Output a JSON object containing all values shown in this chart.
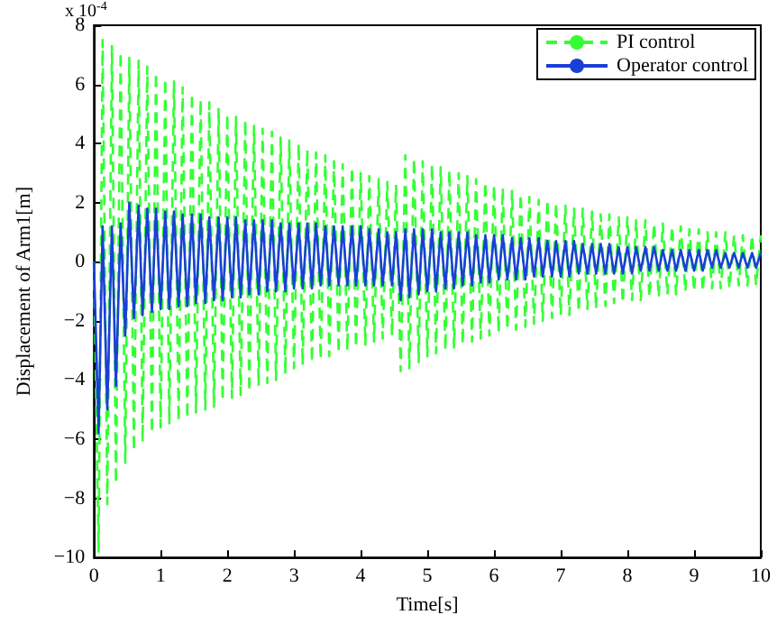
{
  "chart_data": {
    "type": "line",
    "xlabel": "Time[s]",
    "ylabel": "Displacement of Arm1[m]",
    "annotations": [
      "x 10$^{-4}$"
    ],
    "xlim": [
      0,
      10
    ],
    "xticks": [
      0,
      1,
      2,
      3,
      4,
      5,
      6,
      7,
      8,
      9,
      10
    ],
    "ylim": [
      -10,
      8
    ],
    "yticks": [
      -10,
      -8,
      -6,
      -4,
      -2,
      0,
      2,
      4,
      6,
      8
    ],
    "grid": false,
    "legend": "top right",
    "marker": "none",
    "x": [
      0,
      0.07,
      0.13,
      0.2,
      0.27,
      0.33,
      0.4,
      0.47,
      0.53,
      0.6,
      0.67,
      0.73,
      0.8,
      0.87,
      0.93,
      1,
      1.07,
      1.13,
      1.2,
      1.27,
      1.33,
      1.4,
      1.47,
      1.53,
      1.6,
      1.67,
      1.73,
      1.8,
      1.87,
      1.93,
      2,
      2.07,
      2.13,
      2.2,
      2.27,
      2.33,
      2.4,
      2.47,
      2.53,
      2.6,
      2.67,
      2.73,
      2.8,
      2.87,
      2.93,
      3,
      3.07,
      3.13,
      3.2,
      3.27,
      3.33,
      3.4,
      3.47,
      3.53,
      3.6,
      3.67,
      3.73,
      3.8,
      3.87,
      3.93,
      4,
      4.07,
      4.13,
      4.2,
      4.27,
      4.33,
      4.4,
      4.47,
      4.53,
      4.6,
      4.67,
      4.73,
      4.8,
      4.87,
      4.93,
      5,
      5.07,
      5.13,
      5.2,
      5.27,
      5.33,
      5.4,
      5.47,
      5.53,
      5.6,
      5.67,
      5.73,
      5.8,
      5.87,
      5.93,
      6,
      6.07,
      6.13,
      6.2,
      6.27,
      6.33,
      6.4,
      6.47,
      6.53,
      6.6,
      6.67,
      6.73,
      6.8,
      6.87,
      6.93,
      7,
      7.07,
      7.13,
      7.2,
      7.27,
      7.33,
      7.4,
      7.47,
      7.53,
      7.6,
      7.67,
      7.73,
      7.8,
      7.87,
      7.93,
      8,
      8.07,
      8.13,
      8.2,
      8.27,
      8.33,
      8.4,
      8.47,
      8.53,
      8.6,
      8.67,
      8.73,
      8.8,
      8.87,
      8.93,
      9,
      9.07,
      9.13,
      9.2,
      9.27,
      9.33,
      9.4,
      9.47,
      9.53,
      9.6,
      9.67,
      9.73,
      9.8,
      9.87,
      9.93,
      10
    ],
    "series": [
      {
        "name": "PI control",
        "color": "#33ff33",
        "line_style": "dashed",
        "values": [
          0,
          -9.8,
          7.5,
          -8.2,
          7.3,
          -7.5,
          7.1,
          -6.8,
          6.9,
          -6.4,
          6.8,
          -6.1,
          6.6,
          -5.8,
          6.4,
          -5.6,
          6.2,
          -5.5,
          6.1,
          -5.4,
          5.9,
          -5.3,
          5.7,
          -5.1,
          5.5,
          -5.0,
          5.4,
          -4.9,
          5.2,
          -4.7,
          5.0,
          -4.6,
          4.9,
          -4.5,
          4.8,
          -4.4,
          4.6,
          -4.2,
          4.5,
          -4.1,
          4.4,
          -4.0,
          4.2,
          -3.8,
          4.1,
          -3.6,
          4.0,
          -3.5,
          3.8,
          -3.4,
          3.7,
          -3.3,
          3.6,
          -3.2,
          3.4,
          -3.1,
          3.3,
          -3.0,
          3.2,
          -2.9,
          3.0,
          -2.8,
          2.9,
          -2.7,
          2.8,
          -2.6,
          2.7,
          -2.5,
          2.6,
          -3.7,
          3.6,
          -3.6,
          3.5,
          -3.4,
          3.4,
          -3.2,
          3.3,
          -3.1,
          3.2,
          -3.0,
          3.1,
          -2.9,
          3.0,
          -2.8,
          2.9,
          -2.7,
          2.8,
          -2.6,
          2.7,
          -2.5,
          2.6,
          -2.4,
          2.5,
          -2.3,
          2.4,
          -2.3,
          2.3,
          -2.2,
          2.2,
          -2.1,
          2.1,
          -2.0,
          2.1,
          -1.9,
          2.0,
          -1.8,
          1.9,
          -1.8,
          1.8,
          -1.7,
          1.8,
          -1.6,
          1.7,
          -1.6,
          1.6,
          -1.5,
          1.6,
          -1.4,
          1.5,
          -1.4,
          1.5,
          -1.3,
          1.4,
          -1.3,
          1.4,
          -1.2,
          1.3,
          -1.2,
          1.3,
          -1.1,
          1.2,
          -1.1,
          1.2,
          -1.0,
          1.1,
          -1.0,
          1.1,
          -1.0,
          1.0,
          -0.9,
          1.0,
          -0.9,
          1.0,
          -0.9,
          0.9,
          -0.8,
          0.9,
          -0.8,
          0.9,
          -0.8,
          0.9
        ]
      },
      {
        "name": "Operator control",
        "color": "#1a3fd6",
        "line_style": "solid",
        "values": [
          0,
          -5.8,
          1.2,
          -5.0,
          1.2,
          -4.2,
          1.3,
          -2.5,
          2.0,
          -1.9,
          1.9,
          -1.8,
          1.8,
          -1.7,
          1.8,
          -1.6,
          1.7,
          -1.6,
          1.7,
          -1.5,
          1.6,
          -1.5,
          1.6,
          -1.4,
          1.6,
          -1.4,
          1.5,
          -1.3,
          1.5,
          -1.3,
          1.5,
          -1.2,
          1.5,
          -1.2,
          1.4,
          -1.1,
          1.4,
          -1.1,
          1.4,
          -1.0,
          1.4,
          -1.0,
          1.3,
          -1.0,
          1.3,
          -0.9,
          1.3,
          -0.9,
          1.3,
          -0.9,
          1.3,
          -0.8,
          1.2,
          -0.8,
          1.2,
          -0.8,
          1.2,
          -0.8,
          1.2,
          -0.8,
          1.2,
          -0.8,
          1.1,
          -0.8,
          1.1,
          -0.8,
          1.0,
          -0.8,
          1.0,
          -1.3,
          1.1,
          -1.2,
          1.1,
          -1.1,
          1.1,
          -1.0,
          1.1,
          -1.0,
          1.0,
          -0.9,
          1.0,
          -0.9,
          1.0,
          -0.8,
          1.0,
          -0.8,
          0.9,
          -0.7,
          0.9,
          -0.7,
          0.9,
          -0.6,
          0.9,
          -0.6,
          0.8,
          -0.6,
          0.8,
          -0.6,
          0.8,
          -0.5,
          0.8,
          -0.5,
          0.7,
          -0.5,
          0.7,
          -0.5,
          0.7,
          -0.5,
          0.7,
          -0.4,
          0.6,
          -0.4,
          0.6,
          -0.4,
          0.6,
          -0.4,
          0.6,
          -0.4,
          0.5,
          -0.4,
          0.5,
          -0.4,
          0.5,
          -0.3,
          0.5,
          -0.3,
          0.5,
          -0.3,
          0.4,
          -0.3,
          0.4,
          -0.3,
          0.4,
          -0.3,
          0.4,
          -0.3,
          0.4,
          -0.3,
          0.4,
          -0.2,
          0.4,
          -0.2,
          0.3,
          -0.2,
          0.3,
          -0.2,
          0.3,
          -0.2,
          0.3,
          -0.2,
          0.3
        ]
      }
    ]
  }
}
